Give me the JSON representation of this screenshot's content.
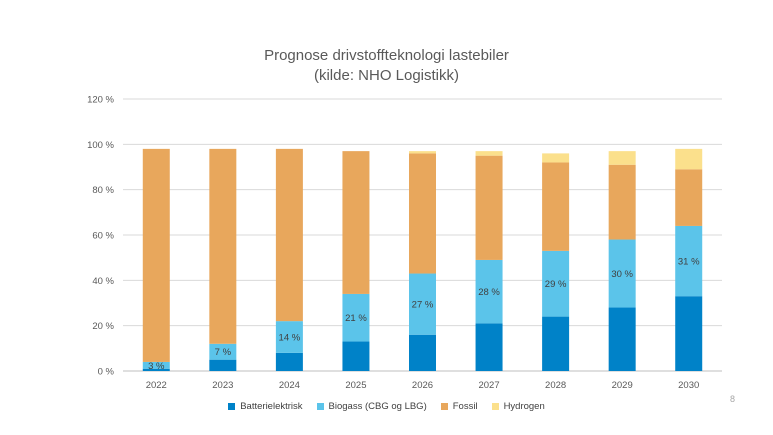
{
  "slide": {
    "title_line1": "Prognose drivstoffteknologi lastebiler",
    "title_line2": "(kilde: NHO Logistikk)",
    "page_number": "8"
  },
  "chart_data": {
    "type": "bar",
    "stacked": true,
    "categories": [
      "2022",
      "2023",
      "2024",
      "2025",
      "2026",
      "2027",
      "2028",
      "2029",
      "2030"
    ],
    "series": [
      {
        "name": "Batterielektrisk",
        "color": "#0082c8",
        "values": [
          1,
          5,
          8,
          13,
          16,
          21,
          24,
          28,
          33
        ]
      },
      {
        "name": "Biogass (CBG og LBG)",
        "color": "#5bc4ea",
        "values": [
          3,
          7,
          14,
          21,
          27,
          28,
          29,
          30,
          31
        ]
      },
      {
        "name": "Fossil",
        "color": "#e8a75c",
        "values": [
          94,
          86,
          76,
          63,
          53,
          46,
          39,
          33,
          25
        ]
      },
      {
        "name": "Hydrogen",
        "color": "#fbe08c",
        "values": [
          0,
          0,
          0,
          0,
          1,
          2,
          4,
          6,
          9
        ]
      }
    ],
    "data_labels": [
      "3 %",
      "7 %",
      "14 %",
      "21 %",
      "27 %",
      "28 %",
      "29 %",
      "30 %",
      "31 %"
    ],
    "ylim": [
      0,
      120
    ],
    "yticks": [
      0,
      20,
      40,
      60,
      80,
      100,
      120
    ],
    "ytick_labels": [
      "0 %",
      "20 %",
      "40 %",
      "60 %",
      "80 %",
      "100 %",
      "120 %"
    ],
    "grid": true,
    "legend_position": "bottom",
    "title": "Prognose drivstoffteknologi lastebiler",
    "subtitle": "(kilde: NHO Logistikk)"
  }
}
